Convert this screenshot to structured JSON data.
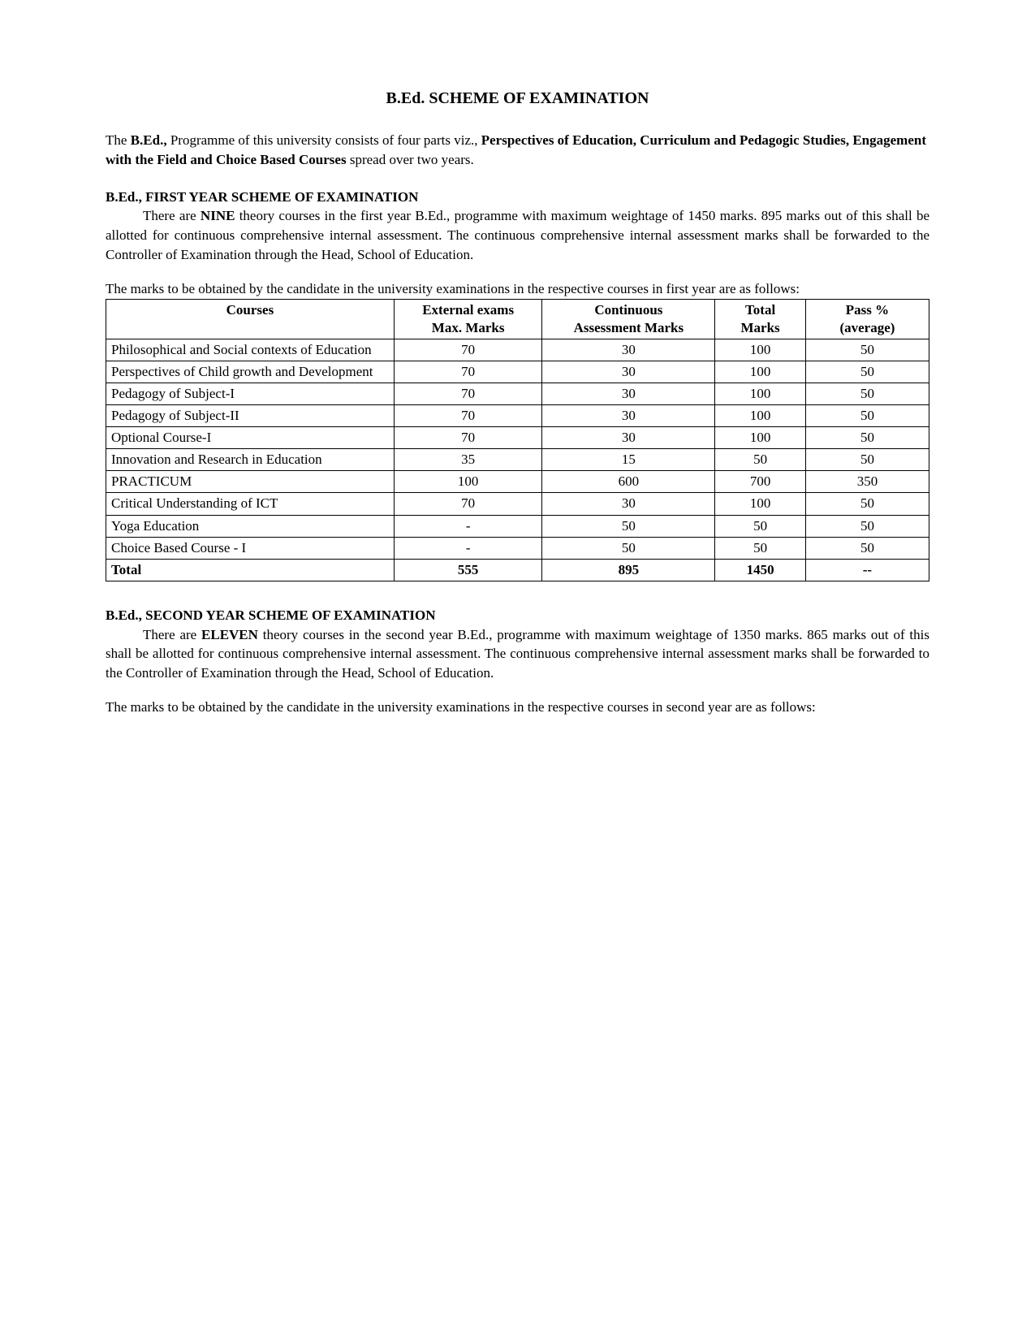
{
  "title": "B.Ed. SCHEME OF EXAMINATION",
  "intro": {
    "pre": "The ",
    "bold1": "B.Ed.,",
    "mid1": " Programme of this university consists of four parts viz., ",
    "bold2": "Perspectives of Education, Curriculum and Pedagogic Studies, Engagement with the Field and Choice Based Courses",
    "post": " spread over two years."
  },
  "first_year": {
    "heading": "B.Ed., FIRST YEAR SCHEME OF EXAMINATION",
    "para1_pre": "There are ",
    "para1_bold": "NINE",
    "para1_post": " theory courses in the first year B.Ed., programme with maximum weightage of 1450 marks. 895 marks out of this shall be allotted for continuous comprehensive internal assessment. The continuous comprehensive internal assessment marks shall be forwarded to the Controller of Examination through the Head, School of Education.",
    "para2": "The marks to be obtained by the candidate in the university examinations in the respective courses in first year are as follows:"
  },
  "table": {
    "headers": {
      "courses": "Courses",
      "ext1": "External exams",
      "ext2": "Max. Marks",
      "cont1": "Continuous",
      "cont2": "Assessment Marks",
      "total1": "Total",
      "total2": "Marks",
      "pass1": "Pass %",
      "pass2": "(average)"
    },
    "col_widths": {
      "courses_pct": 35,
      "ext_pct": 18,
      "cont_pct": 21,
      "total_pct": 11,
      "pass_pct": 15
    },
    "rows": [
      {
        "course": "Philosophical and Social contexts of Education",
        "ext": "70",
        "cont": "30",
        "total": "100",
        "pass": "50"
      },
      {
        "course": "Perspectives of Child growth and Development",
        "ext": "70",
        "cont": "30",
        "total": "100",
        "pass": "50"
      },
      {
        "course": "Pedagogy of Subject-I",
        "ext": "70",
        "cont": "30",
        "total": "100",
        "pass": "50"
      },
      {
        "course": "Pedagogy of Subject-II",
        "ext": "70",
        "cont": "30",
        "total": "100",
        "pass": "50"
      },
      {
        "course": "Optional Course-I",
        "ext": "70",
        "cont": "30",
        "total": "100",
        "pass": "50"
      },
      {
        "course": "Innovation and Research in Education",
        "ext": "35",
        "cont": "15",
        "total": "50",
        "pass": "50"
      },
      {
        "course": "PRACTICUM",
        "ext": "100",
        "cont": "600",
        "total": "700",
        "pass": "350"
      },
      {
        "course": "Critical Understanding of ICT",
        "ext": "70",
        "cont": "30",
        "total": "100",
        "pass": "50"
      },
      {
        "course": "Yoga Education",
        "ext": "-",
        "cont": "50",
        "total": "50",
        "pass": "50"
      },
      {
        "course": "Choice Based Course - I",
        "ext": "-",
        "cont": "50",
        "total": "50",
        "pass": "50"
      }
    ],
    "total_row": {
      "course": "Total",
      "ext": "555",
      "cont": "895",
      "total": "1450",
      "pass": "--"
    }
  },
  "second_year": {
    "heading": "B.Ed., SECOND YEAR SCHEME OF EXAMINATION",
    "para1_pre": "There are ",
    "para1_bold": "ELEVEN",
    "para1_post": " theory courses in the second year B.Ed., programme with maximum weightage of 1350 marks. 865 marks out of this shall be allotted for continuous comprehensive internal assessment. The continuous comprehensive internal assessment marks shall be forwarded to the Controller of Examination through the Head, School of Education.",
    "para2": "The marks to be obtained by the candidate in the university examinations in the respective courses in second year are as follows:"
  }
}
